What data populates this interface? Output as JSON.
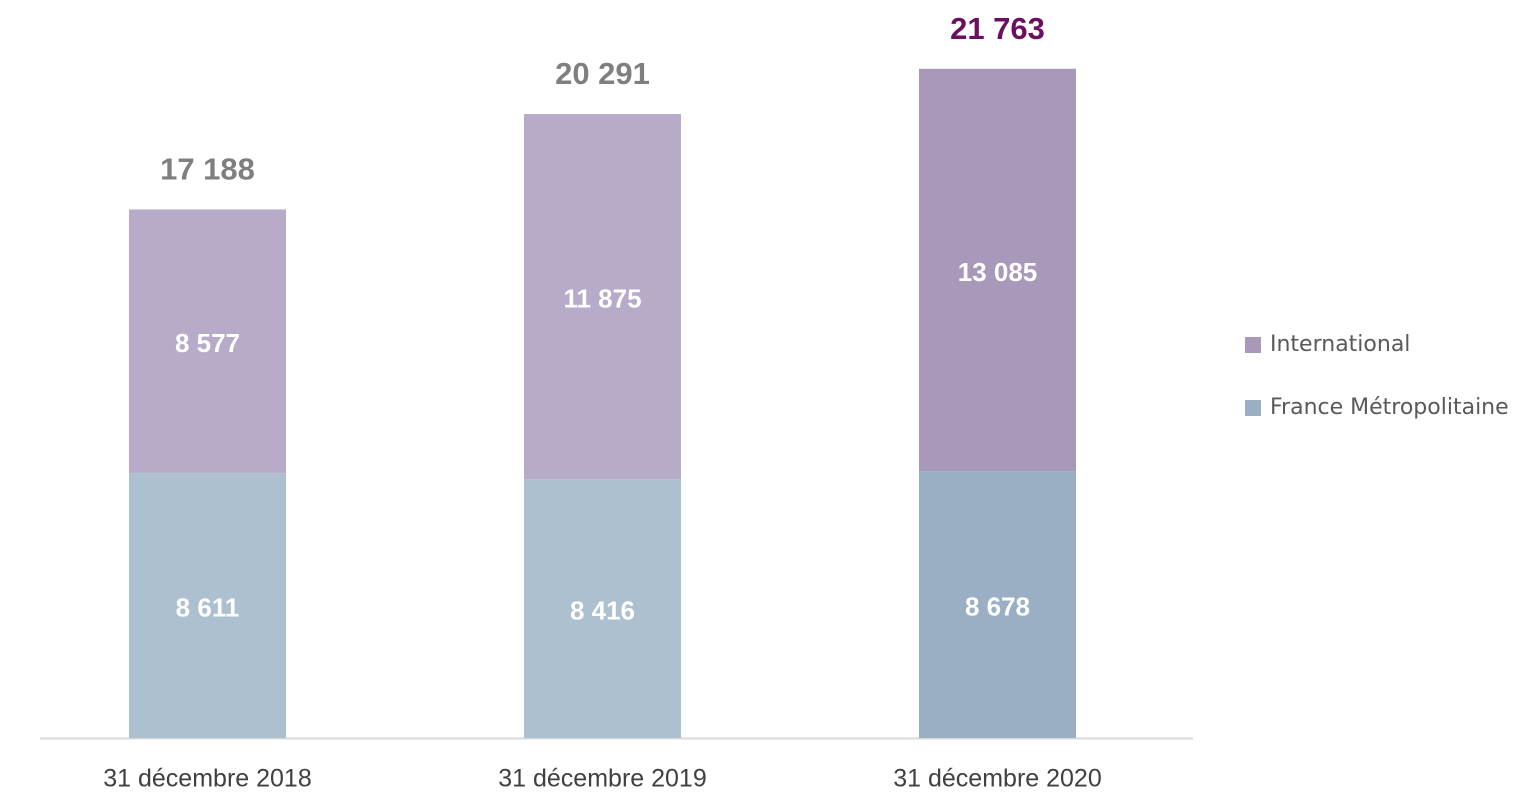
{
  "chart_data": {
    "type": "stacked_bar",
    "categories": [
      "31 décembre 2018",
      "31 décembre 2019",
      "31 décembre 2020"
    ],
    "series": [
      {
        "name": "France Métropolitaine",
        "color": "#9aafc4",
        "colors": [
          "#adc0cf",
          "#adc0cf",
          "#9aafc4"
        ],
        "values": [
          8611,
          8416,
          8678
        ],
        "value_labels": [
          "8 611",
          "8 416",
          "8 678"
        ]
      },
      {
        "name": "International",
        "color": "#a899bb",
        "colors": [
          "#b7abc9",
          "#b7abc9",
          "#a899bb"
        ],
        "values": [
          8577,
          11875,
          13085
        ],
        "value_labels": [
          "8 577",
          "11 875",
          "13 085"
        ]
      }
    ],
    "totals": [
      17188,
      20291,
      21763
    ],
    "total_labels": [
      "17 188",
      "20 291",
      "21 763"
    ],
    "total_colors": [
      "#7f7f7f",
      "#7f7f7f",
      "#6b0f5e"
    ],
    "ylim": [
      0,
      24000
    ],
    "legend": "right"
  }
}
